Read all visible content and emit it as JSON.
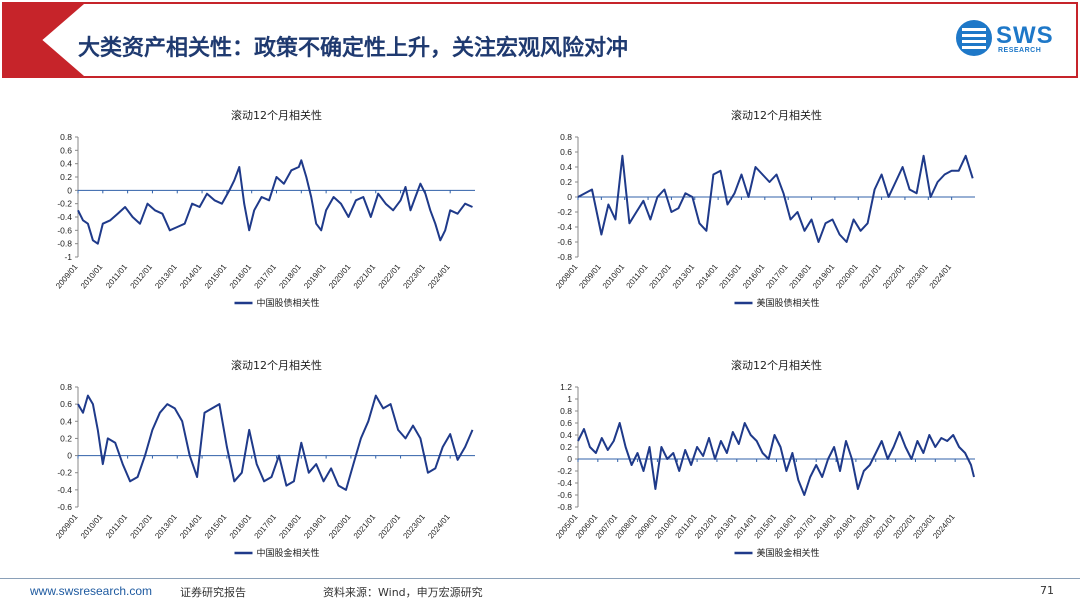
{
  "header": {
    "title": "大类资产相关性：政策不确定性上升，关注宏观风险对冲",
    "logo_name": "SWS",
    "logo_sub": "RESEARCH"
  },
  "footer": {
    "url": "www.swsresearch.com",
    "label": "证券研究报告",
    "source": "资料来源：Wind，申万宏源研究",
    "page": "71"
  },
  "colors": {
    "accent": "#c6242a",
    "line": "#1f3a8a",
    "title": "#1f3a70",
    "brand": "#1e78c8"
  },
  "chart_data": [
    {
      "type": "line",
      "title": "滚动12个月相关性",
      "legend": "中国股债相关性",
      "legend_position": "bottom",
      "ylim": [
        -1,
        0.8
      ],
      "yticks": [
        0.8,
        0.6,
        0.4,
        0.2,
        0,
        -0.2,
        -0.4,
        -0.6,
        -0.8,
        -1
      ],
      "ytick_labels": [
        "0.8",
        "0.6",
        "0.4",
        "0.2",
        "0",
        "-0.2",
        "-0.4",
        "-0.6",
        "-0.8",
        "-1"
      ],
      "xlim": [
        2009.0,
        2025.0
      ],
      "xtick_labels": [
        "2009/01",
        "2010/01",
        "2011/01",
        "2012/01",
        "2013/01",
        "2014/01",
        "2015/01",
        "2016/01",
        "2017/01",
        "2018/01",
        "2019/01",
        "2020/01",
        "2021/01",
        "2022/01",
        "2023/01",
        "2024/01"
      ],
      "series": [
        {
          "name": "中国股债相关性",
          "x": [
            2009.0,
            2009.2,
            2009.4,
            2009.6,
            2009.8,
            2010.0,
            2010.3,
            2010.6,
            2010.9,
            2011.2,
            2011.5,
            2011.8,
            2012.1,
            2012.4,
            2012.7,
            2013.0,
            2013.3,
            2013.6,
            2013.9,
            2014.2,
            2014.5,
            2014.8,
            2015.1,
            2015.3,
            2015.5,
            2015.7,
            2015.9,
            2016.1,
            2016.4,
            2016.7,
            2017.0,
            2017.3,
            2017.6,
            2017.9,
            2018.0,
            2018.2,
            2018.4,
            2018.6,
            2018.8,
            2019.0,
            2019.3,
            2019.6,
            2019.9,
            2020.2,
            2020.5,
            2020.8,
            2021.1,
            2021.4,
            2021.7,
            2022.0,
            2022.2,
            2022.4,
            2022.6,
            2022.8,
            2023.0,
            2023.2,
            2023.4,
            2023.6,
            2023.8,
            2024.0,
            2024.3,
            2024.6,
            2024.9
          ],
          "y": [
            -0.3,
            -0.45,
            -0.5,
            -0.75,
            -0.8,
            -0.5,
            -0.45,
            -0.35,
            -0.25,
            -0.4,
            -0.5,
            -0.2,
            -0.3,
            -0.35,
            -0.6,
            -0.55,
            -0.5,
            -0.2,
            -0.25,
            -0.05,
            -0.15,
            -0.2,
            0.0,
            0.15,
            0.35,
            -0.2,
            -0.6,
            -0.3,
            -0.1,
            -0.15,
            0.2,
            0.1,
            0.3,
            0.35,
            0.45,
            0.2,
            -0.1,
            -0.5,
            -0.6,
            -0.3,
            -0.1,
            -0.2,
            -0.4,
            -0.15,
            -0.1,
            -0.4,
            -0.05,
            -0.2,
            -0.3,
            -0.15,
            0.05,
            -0.3,
            -0.1,
            0.1,
            -0.05,
            -0.3,
            -0.5,
            -0.75,
            -0.6,
            -0.3,
            -0.35,
            -0.2,
            -0.25
          ]
        }
      ]
    },
    {
      "type": "line",
      "title": "滚动12个月相关性",
      "legend": "美国股债相关性",
      "legend_position": "bottom",
      "ylim": [
        -0.8,
        0.8
      ],
      "yticks": [
        0.8,
        0.6,
        0.4,
        0.2,
        0,
        -0.2,
        -0.4,
        -0.6,
        -0.8
      ],
      "ytick_labels": [
        "0.8",
        "0.6",
        "0.4",
        "0.2",
        "0",
        "-0.2",
        "-0.4",
        "-0.6",
        "-0.8"
      ],
      "xlim": [
        2008.0,
        2025.0
      ],
      "xtick_labels": [
        "2008/01",
        "2009/01",
        "2010/01",
        "2011/01",
        "2012/01",
        "2013/01",
        "2014/01",
        "2015/01",
        "2016/01",
        "2017/01",
        "2018/01",
        "2019/01",
        "2020/01",
        "2021/01",
        "2022/01",
        "2023/01",
        "2024/01"
      ],
      "series": [
        {
          "name": "美国股债相关性",
          "x": [
            2008.0,
            2008.3,
            2008.6,
            2009.0,
            2009.3,
            2009.6,
            2009.9,
            2010.2,
            2010.5,
            2010.8,
            2011.1,
            2011.4,
            2011.7,
            2012.0,
            2012.3,
            2012.6,
            2012.9,
            2013.2,
            2013.5,
            2013.8,
            2014.1,
            2014.4,
            2014.7,
            2015.0,
            2015.3,
            2015.6,
            2015.9,
            2016.2,
            2016.5,
            2016.8,
            2017.1,
            2017.4,
            2017.7,
            2018.0,
            2018.3,
            2018.6,
            2018.9,
            2019.2,
            2019.5,
            2019.8,
            2020.1,
            2020.4,
            2020.7,
            2021.0,
            2021.3,
            2021.6,
            2021.9,
            2022.2,
            2022.5,
            2022.8,
            2023.1,
            2023.4,
            2023.7,
            2024.0,
            2024.3,
            2024.6,
            2024.9
          ],
          "y": [
            0.0,
            0.05,
            0.1,
            -0.5,
            -0.1,
            -0.3,
            0.55,
            -0.35,
            -0.2,
            -0.05,
            -0.3,
            0.0,
            0.1,
            -0.2,
            -0.15,
            0.05,
            0.0,
            -0.35,
            -0.45,
            0.3,
            0.35,
            -0.1,
            0.05,
            0.3,
            0.0,
            0.4,
            0.3,
            0.2,
            0.3,
            0.05,
            -0.3,
            -0.2,
            -0.45,
            -0.3,
            -0.6,
            -0.35,
            -0.3,
            -0.5,
            -0.6,
            -0.3,
            -0.45,
            -0.35,
            0.1,
            0.3,
            0.0,
            0.2,
            0.4,
            0.1,
            0.05,
            0.55,
            0.0,
            0.2,
            0.3,
            0.35,
            0.35,
            0.55,
            0.25
          ]
        }
      ]
    },
    {
      "type": "line",
      "title": "滚动12个月相关性",
      "legend": "中国股金相关性",
      "legend_position": "bottom",
      "ylim": [
        -0.6,
        0.8
      ],
      "yticks": [
        0.8,
        0.6,
        0.4,
        0.2,
        0,
        -0.2,
        -0.4,
        -0.6
      ],
      "ytick_labels": [
        "0.8",
        "0.6",
        "0.4",
        "0.2",
        "0",
        "-0.2",
        "-0.4",
        "-0.6"
      ],
      "xlim": [
        2009.0,
        2025.0
      ],
      "xtick_labels": [
        "2009/01",
        "2010/01",
        "2011/01",
        "2012/01",
        "2013/01",
        "2014/01",
        "2015/01",
        "2016/01",
        "2017/01",
        "2018/01",
        "2019/01",
        "2020/01",
        "2021/01",
        "2022/01",
        "2023/01",
        "2024/01"
      ],
      "series": [
        {
          "name": "中国股金相关性",
          "x": [
            2009.0,
            2009.2,
            2009.4,
            2009.6,
            2009.8,
            2010.0,
            2010.2,
            2010.5,
            2010.8,
            2011.1,
            2011.4,
            2011.7,
            2012.0,
            2012.3,
            2012.6,
            2012.9,
            2013.2,
            2013.5,
            2013.8,
            2014.1,
            2014.4,
            2014.7,
            2015.0,
            2015.3,
            2015.6,
            2015.9,
            2016.2,
            2016.5,
            2016.8,
            2017.1,
            2017.4,
            2017.7,
            2018.0,
            2018.3,
            2018.6,
            2018.9,
            2019.2,
            2019.5,
            2019.8,
            2020.1,
            2020.4,
            2020.7,
            2021.0,
            2021.3,
            2021.6,
            2021.9,
            2022.2,
            2022.5,
            2022.8,
            2023.1,
            2023.4,
            2023.7,
            2024.0,
            2024.3,
            2024.6,
            2024.9
          ],
          "y": [
            0.6,
            0.5,
            0.7,
            0.6,
            0.3,
            -0.1,
            0.2,
            0.15,
            -0.1,
            -0.3,
            -0.25,
            0.0,
            0.3,
            0.5,
            0.6,
            0.55,
            0.4,
            0.0,
            -0.25,
            0.5,
            0.55,
            0.6,
            0.1,
            -0.3,
            -0.2,
            0.3,
            -0.1,
            -0.3,
            -0.25,
            0.0,
            -0.35,
            -0.3,
            0.15,
            -0.2,
            -0.1,
            -0.3,
            -0.15,
            -0.35,
            -0.4,
            -0.1,
            0.2,
            0.4,
            0.7,
            0.55,
            0.6,
            0.3,
            0.2,
            0.35,
            0.2,
            -0.2,
            -0.15,
            0.1,
            0.25,
            -0.05,
            0.1,
            0.3
          ]
        }
      ]
    },
    {
      "type": "line",
      "title": "滚动12个月相关性",
      "legend": "美国股金相关性",
      "legend_position": "bottom",
      "ylim": [
        -0.8,
        1.2
      ],
      "yticks": [
        1.2,
        1,
        0.8,
        0.6,
        0.4,
        0.2,
        0,
        -0.2,
        -0.4,
        -0.6,
        -0.8
      ],
      "ytick_labels": [
        "1.2",
        "1",
        "0.8",
        "0.6",
        "0.4",
        "0.2",
        "0",
        "-0.2",
        "-0.4",
        "-0.6",
        "-0.8"
      ],
      "xlim": [
        2005.0,
        2025.0
      ],
      "xtick_labels": [
        "2005/01",
        "2006/01",
        "2007/01",
        "2008/01",
        "2009/01",
        "2010/01",
        "2011/01",
        "2012/01",
        "2013/01",
        "2014/01",
        "2015/01",
        "2016/01",
        "2017/01",
        "2018/01",
        "2019/01",
        "2020/01",
        "2021/01",
        "2022/01",
        "2023/01",
        "2024/01"
      ],
      "series": [
        {
          "name": "美国股金相关性",
          "x": [
            2005.0,
            2005.3,
            2005.6,
            2005.9,
            2006.2,
            2006.5,
            2006.8,
            2007.1,
            2007.4,
            2007.7,
            2008.0,
            2008.3,
            2008.6,
            2008.9,
            2009.2,
            2009.5,
            2009.8,
            2010.1,
            2010.4,
            2010.7,
            2011.0,
            2011.3,
            2011.6,
            2011.9,
            2012.2,
            2012.5,
            2012.8,
            2013.1,
            2013.4,
            2013.7,
            2014.0,
            2014.3,
            2014.6,
            2014.9,
            2015.2,
            2015.5,
            2015.8,
            2016.1,
            2016.4,
            2016.7,
            2017.0,
            2017.3,
            2017.6,
            2017.9,
            2018.2,
            2018.5,
            2018.8,
            2019.1,
            2019.4,
            2019.7,
            2020.0,
            2020.3,
            2020.6,
            2020.9,
            2021.2,
            2021.5,
            2021.8,
            2022.1,
            2022.4,
            2022.7,
            2023.0,
            2023.3,
            2023.6,
            2023.9,
            2024.2,
            2024.5,
            2024.8,
            2024.95
          ],
          "y": [
            0.3,
            0.5,
            0.2,
            0.1,
            0.35,
            0.15,
            0.3,
            0.6,
            0.2,
            -0.1,
            0.1,
            -0.2,
            0.2,
            -0.5,
            0.2,
            0.0,
            0.1,
            -0.2,
            0.15,
            -0.1,
            0.2,
            0.05,
            0.35,
            0.0,
            0.3,
            0.1,
            0.45,
            0.25,
            0.6,
            0.4,
            0.3,
            0.1,
            0.0,
            0.4,
            0.2,
            -0.2,
            0.1,
            -0.35,
            -0.6,
            -0.3,
            -0.1,
            -0.3,
            0.0,
            0.2,
            -0.2,
            0.3,
            0.0,
            -0.5,
            -0.2,
            -0.1,
            0.1,
            0.3,
            0.0,
            0.2,
            0.45,
            0.2,
            0.0,
            0.3,
            0.1,
            0.4,
            0.2,
            0.35,
            0.3,
            0.4,
            0.2,
            0.1,
            -0.1,
            -0.3
          ]
        }
      ]
    }
  ]
}
